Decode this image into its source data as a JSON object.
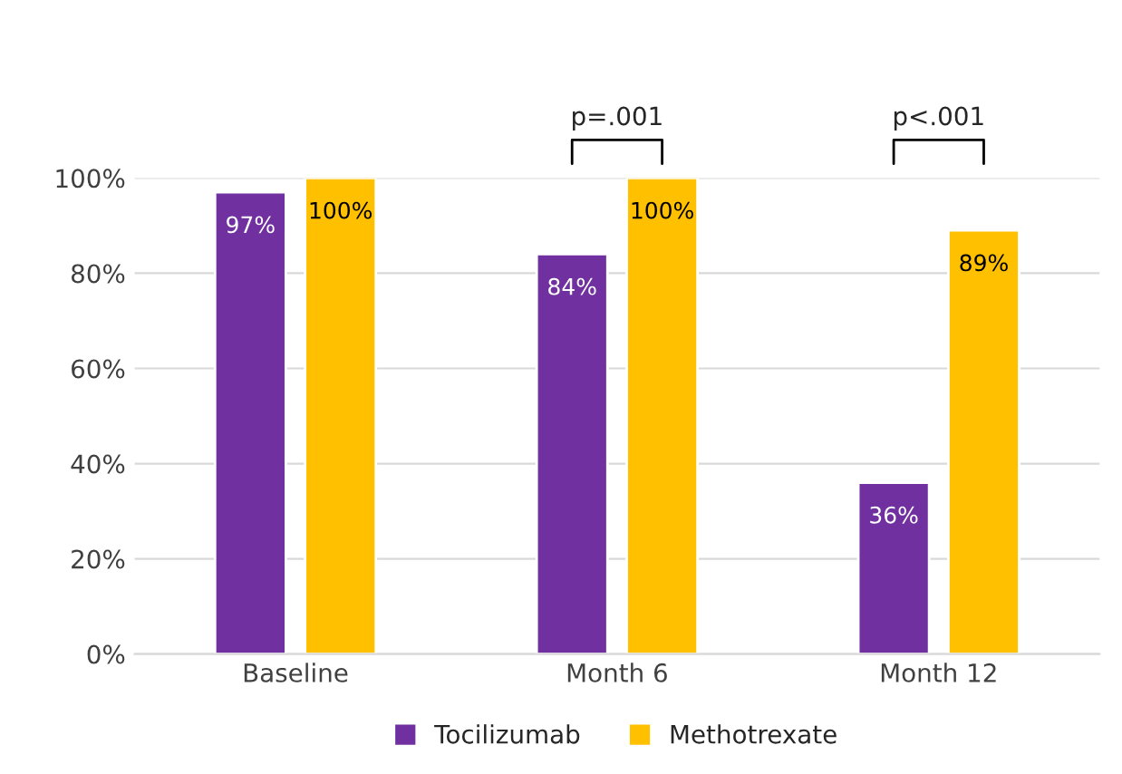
{
  "chart_data": {
    "type": "bar",
    "categories": [
      "Baseline",
      "Month 6",
      "Month 12"
    ],
    "series": [
      {
        "name": "Tocilizumab",
        "color": "#7030a0",
        "values": [
          97,
          84,
          36
        ],
        "value_labels": [
          "97%",
          "84%",
          "36%"
        ]
      },
      {
        "name": "Methotrexate",
        "color": "#ffc000",
        "values": [
          100,
          100,
          89
        ],
        "value_labels": [
          "100%",
          "100%",
          "89%"
        ]
      }
    ],
    "ylim": [
      0,
      100
    ],
    "yticks": [
      {
        "value": 0,
        "label": "0%"
      },
      {
        "value": 20,
        "label": "20%"
      },
      {
        "value": 40,
        "label": "40%"
      },
      {
        "value": 60,
        "label": "60%"
      },
      {
        "value": 80,
        "label": "80%"
      },
      {
        "value": 100,
        "label": "100%"
      }
    ],
    "grid": "y",
    "legend": "bottom",
    "annotations": [
      "p=.001",
      "p<.001"
    ]
  }
}
